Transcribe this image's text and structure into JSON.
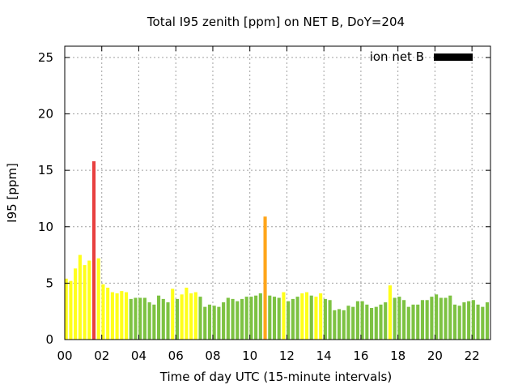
{
  "chart_data": {
    "type": "bar",
    "title": "Total I95 zenith [ppm] on NET B, DoY=204",
    "xlabel": "Time of day UTC (15-minute intervals)",
    "ylabel": "I95 [ppm]",
    "ylim": [
      0,
      26
    ],
    "xlim": [
      0,
      23
    ],
    "yticks": [
      0,
      5,
      10,
      15,
      20,
      25
    ],
    "xticks": [
      {
        "value": 0,
        "label": "00"
      },
      {
        "value": 2,
        "label": "02"
      },
      {
        "value": 4,
        "label": "04"
      },
      {
        "value": 6,
        "label": "06"
      },
      {
        "value": 8,
        "label": "08"
      },
      {
        "value": 10,
        "label": "10"
      },
      {
        "value": 12,
        "label": "12"
      },
      {
        "value": 14,
        "label": "14"
      },
      {
        "value": 16,
        "label": "16"
      },
      {
        "value": 18,
        "label": "18"
      },
      {
        "value": 20,
        "label": "20"
      },
      {
        "value": 22,
        "label": "22"
      }
    ],
    "grid": true,
    "legend": {
      "label": "ion net B",
      "color": "#000000",
      "position": "top-right"
    },
    "bar_interval_hours": 0.25,
    "colors": {
      "green": "#7dc242",
      "yellow": "#ffff1a",
      "orange": "#ffa51a",
      "red": "#e84040"
    },
    "series": [
      {
        "values": [
          5.4,
          5.2,
          6.3,
          7.5,
          6.6,
          7.0,
          15.8,
          7.2,
          4.9,
          4.6,
          4.2,
          4.1,
          4.3,
          4.2,
          3.6,
          3.7,
          3.7,
          3.7,
          3.3,
          3.1,
          3.9,
          3.6,
          3.3,
          4.5,
          3.6,
          4.0,
          4.6,
          4.1,
          4.2,
          3.8,
          2.9,
          3.1,
          3.0,
          2.9,
          3.3,
          3.7,
          3.6,
          3.4,
          3.6,
          3.8,
          3.8,
          3.9,
          4.1,
          10.9,
          3.9,
          3.8,
          3.7,
          4.2,
          3.4,
          3.6,
          3.8,
          4.1,
          4.2,
          3.9,
          3.8,
          4.1,
          3.6,
          3.5,
          2.6,
          2.7,
          2.6,
          3.0,
          2.9,
          3.4,
          3.4,
          3.1,
          2.8,
          2.9,
          3.1,
          3.3,
          4.8,
          3.7,
          3.8,
          3.5,
          2.9,
          3.1,
          3.1,
          3.5,
          3.5,
          3.8,
          4.0,
          3.7,
          3.7,
          3.9,
          3.1,
          3.0,
          3.3,
          3.4,
          3.5,
          3.1,
          2.9,
          3.3
        ],
        "colors": [
          "yellow",
          "yellow",
          "yellow",
          "yellow",
          "yellow",
          "yellow",
          "red",
          "yellow",
          "yellow",
          "yellow",
          "yellow",
          "yellow",
          "yellow",
          "yellow",
          "green",
          "green",
          "green",
          "green",
          "green",
          "green",
          "green",
          "green",
          "green",
          "yellow",
          "green",
          "yellow",
          "yellow",
          "yellow",
          "yellow",
          "green",
          "green",
          "green",
          "green",
          "green",
          "green",
          "green",
          "green",
          "green",
          "green",
          "green",
          "green",
          "green",
          "green",
          "orange",
          "green",
          "green",
          "green",
          "yellow",
          "green",
          "green",
          "green",
          "yellow",
          "yellow",
          "green",
          "yellow",
          "yellow",
          "green",
          "green",
          "green",
          "green",
          "green",
          "green",
          "green",
          "green",
          "green",
          "green",
          "green",
          "green",
          "green",
          "green",
          "yellow",
          "green",
          "green",
          "green",
          "green",
          "green",
          "green",
          "green",
          "green",
          "green",
          "green",
          "green",
          "green",
          "green",
          "green",
          "green",
          "green",
          "green",
          "green",
          "green",
          "green",
          "green"
        ]
      }
    ]
  }
}
